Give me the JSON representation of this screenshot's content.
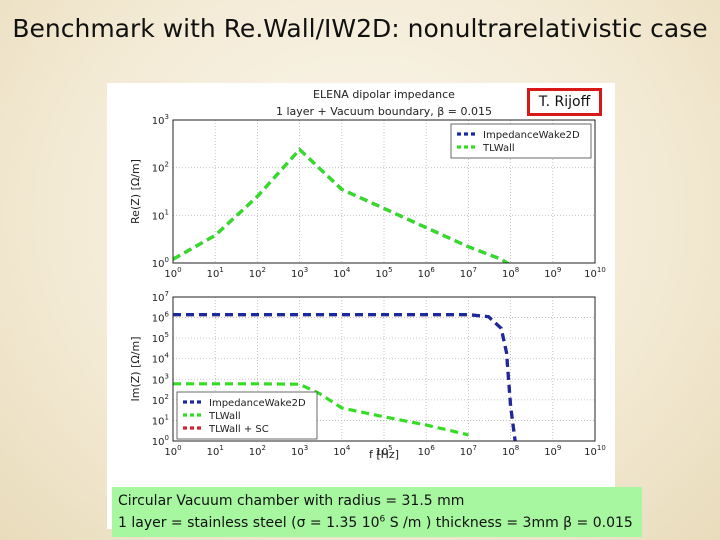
{
  "slide": {
    "title": "Benchmark with Re.Wall/IW2D: nonultrarelativistic case",
    "author": "T. Rijoff",
    "caption": {
      "line1": "Circular Vacuum chamber with radius = 31.5 mm",
      "line2_a": "1 layer = stainless steel (σ = 1.35 10",
      "line2_sup": "6",
      "line2_b": " S /m ) thickness = 3mm  β = 0.015"
    }
  },
  "chart_data": {
    "title": "ELENA dipolar impedance",
    "subtitle": "1 layer + Vacuum boundary, β = 0.015",
    "xlabel": "f [Hz]",
    "xscale": "log",
    "xlim": [
      1,
      10000000000.0
    ],
    "x_tick_exponents": [
      0,
      1,
      2,
      3,
      4,
      5,
      6,
      7,
      8,
      9,
      10
    ],
    "colors": {
      "impedancewake2d": "#1a2aa0",
      "tlwall": "#33dd22",
      "tlwall_sc": "#d42030"
    },
    "panels": [
      {
        "id": "top",
        "ylabel": "Re(Z) [Ω/m]",
        "yscale": "log",
        "ylim": [
          1,
          1000
        ],
        "y_tick_exponents": [
          0,
          1,
          2,
          3
        ],
        "legend_position": "top-right",
        "legend": [
          "ImpedanceWake2D",
          "TLWall"
        ],
        "series": [
          {
            "name": "ImpedanceWake2D",
            "color_key": "impedancewake2d",
            "dash": "8,5",
            "x": [
              1,
              10,
              100,
              1000,
              10000,
              100000,
              1000000,
              10000000,
              60000000,
              100000000
            ],
            "y": [
              1.2,
              3.8,
              25,
              240,
              35,
              14,
              5.5,
              2.2,
              1.2,
              0.9
            ]
          },
          {
            "name": "TLWall",
            "color_key": "tlwall",
            "dash": "8,5",
            "x": [
              1,
              10,
              100,
              1000,
              10000,
              100000,
              1000000,
              10000000,
              60000000,
              100000000
            ],
            "y": [
              1.2,
              3.8,
              25,
              240,
              35,
              14,
              5.5,
              2.2,
              1.2,
              0.9
            ]
          }
        ]
      },
      {
        "id": "bottom",
        "ylabel": "Im(Z) [Ω/m]",
        "yscale": "log",
        "ylim": [
          1,
          10000000
        ],
        "y_tick_exponents": [
          0,
          1,
          2,
          3,
          4,
          5,
          6,
          7
        ],
        "legend_position": "lower-left",
        "legend": [
          "ImpedanceWake2D",
          "TLWall",
          "TLWall + SC"
        ],
        "series": [
          {
            "name": "TLWall + SC",
            "color_key": "tlwall_sc",
            "dash": "8,5",
            "x": [
              1,
              1000,
              10000000,
              30000000,
              60000000,
              80000000,
              100000000,
              130000000,
              150000000,
              10000000000
            ],
            "y": [
              1400000,
              1400000,
              1400000,
              1100000,
              300000,
              20000,
              50,
              0.8,
              0.8,
              0.8
            ]
          },
          {
            "name": "ImpedanceWake2D",
            "color_key": "impedancewake2d",
            "dash": "8,5",
            "x": [
              1,
              1000,
              10000000,
              30000000,
              60000000,
              80000000,
              100000000,
              130000000,
              150000000,
              10000000000
            ],
            "y": [
              1400000,
              1400000,
              1400000,
              1100000,
              300000,
              20000,
              50,
              0.8,
              0.8,
              0.8
            ]
          },
          {
            "name": "TLWall",
            "color_key": "tlwall",
            "dash": "8,5",
            "x": [
              1,
              100,
              1000,
              3000,
              10000,
              100000,
              1000000,
              10000000
            ],
            "y": [
              600,
              600,
              580,
              200,
              40,
              15,
              6,
              2
            ]
          }
        ]
      }
    ]
  }
}
